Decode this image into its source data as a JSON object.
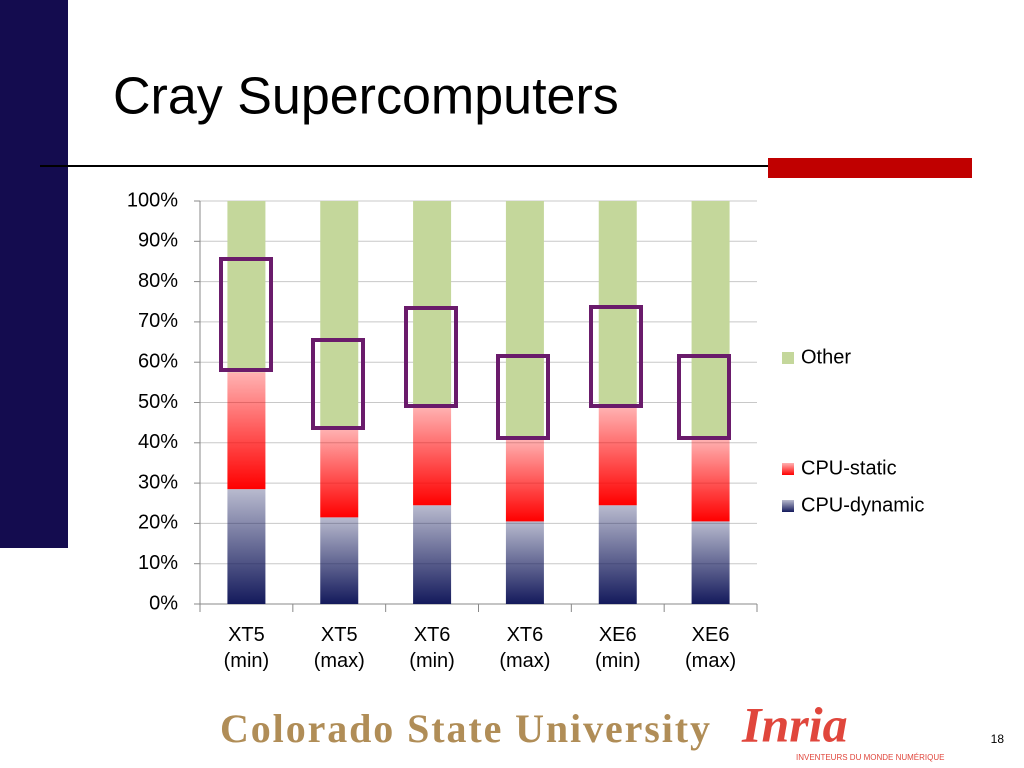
{
  "chart_data": {
    "type": "stacked_bar",
    "title": "Cray Supercomputers",
    "categories": [
      "XT5 (min)",
      "XT5 (max)",
      "XT6 (min)",
      "XT6 (max)",
      "XE6 (min)",
      "XE6 (max)"
    ],
    "series": [
      {
        "name": "CPU-dynamic",
        "color": "#141a5c",
        "values": [
          28.5,
          21.5,
          24.5,
          20.5,
          24.5,
          20.5
        ]
      },
      {
        "name": "CPU-static",
        "color": "#ff0000",
        "values": [
          29,
          22,
          24.5,
          20.5,
          24.5,
          20.5
        ]
      },
      {
        "name": "Other",
        "color": "#c4d79b",
        "values": [
          42.5,
          56.5,
          51,
          59,
          51,
          59
        ]
      }
    ],
    "ylim": [
      0,
      100
    ],
    "yticks": [
      {
        "value": 0,
        "label": "0%"
      },
      {
        "value": 10,
        "label": "10%"
      },
      {
        "value": 20,
        "label": "20%"
      },
      {
        "value": 30,
        "label": "30%"
      },
      {
        "value": 40,
        "label": "40%"
      },
      {
        "value": 50,
        "label": "50%"
      },
      {
        "value": 60,
        "label": "60%"
      },
      {
        "value": 70,
        "label": "70%"
      },
      {
        "value": 80,
        "label": "80%"
      },
      {
        "value": 90,
        "label": "90%"
      },
      {
        "value": 100,
        "label": "100%"
      }
    ],
    "grid": true,
    "legend": "right"
  },
  "footer": {
    "university": "Colorado State University",
    "institute": "Inria",
    "institute_tagline": "INVENTEURS DU MONDE NUMÉRIQUE",
    "page_number": "18"
  }
}
